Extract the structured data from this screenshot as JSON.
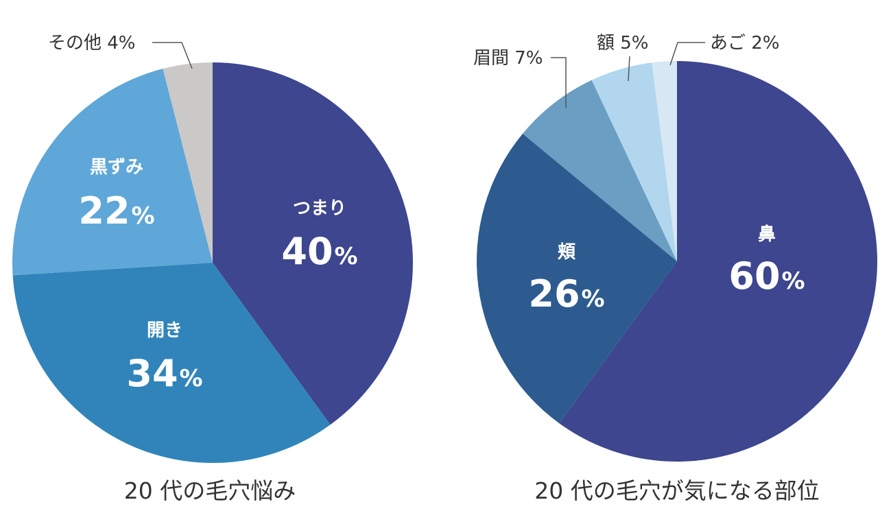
{
  "chart_data": [
    {
      "type": "pie",
      "title": "20 代の毛穴悩み",
      "slices": [
        {
          "label": "つまり",
          "value": 40,
          "display": "40",
          "color": "#3d468e"
        },
        {
          "label": "開き",
          "value": 34,
          "display": "34",
          "color": "#3184ba"
        },
        {
          "label": "黒ずみ",
          "value": 22,
          "display": "22",
          "color": "#5ea7d8"
        },
        {
          "label": "その他",
          "value": 4,
          "display": "その他 4%",
          "color": "#cbc8c8"
        }
      ]
    },
    {
      "type": "pie",
      "title": "20 代の毛穴が気になる部位",
      "slices": [
        {
          "label": "鼻",
          "value": 60,
          "display": "60",
          "color": "#3d468e"
        },
        {
          "label": "頬",
          "value": 26,
          "display": "26",
          "color": "#2d5b8f"
        },
        {
          "label": "眉間",
          "value": 7,
          "display": "眉間 7%",
          "color": "#6a9ec2"
        },
        {
          "label": "額",
          "value": 5,
          "display": "額 5%",
          "color": "#b1d6ee"
        },
        {
          "label": "あご",
          "value": 2,
          "display": "あご 2%",
          "color": "#d7e7f4"
        }
      ]
    }
  ],
  "percent_sign": "%"
}
